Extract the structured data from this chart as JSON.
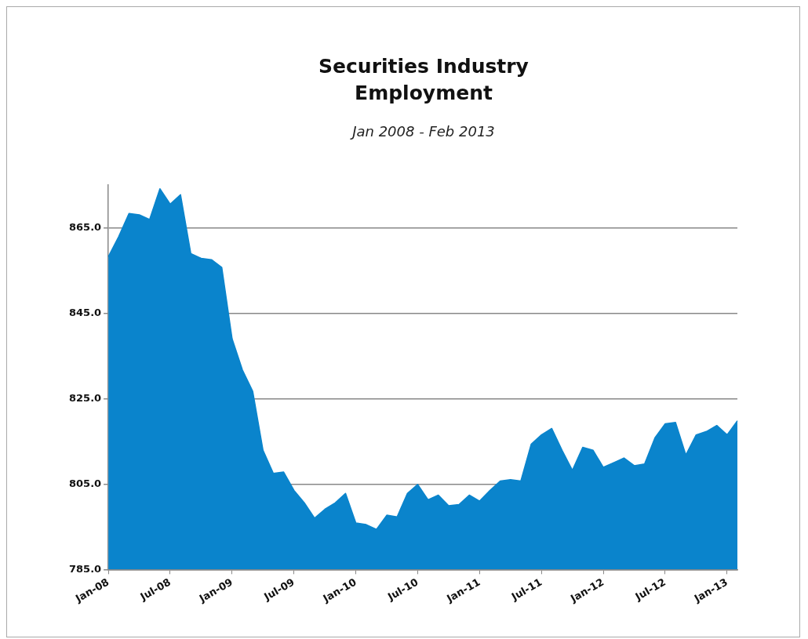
{
  "chart_data": {
    "type": "area",
    "title": "Securities Industry Employment",
    "subtitle": "Jan 2008 -  Feb 2013",
    "categories": [
      "Jan-08",
      null,
      null,
      null,
      null,
      null,
      "Jul-08",
      null,
      null,
      null,
      null,
      null,
      "Jan-09",
      null,
      null,
      null,
      null,
      null,
      "Jul-09",
      null,
      null,
      null,
      null,
      null,
      "Jan-10",
      null,
      null,
      null,
      null,
      null,
      "Jul-10",
      null,
      null,
      null,
      null,
      null,
      "Jan-11",
      null,
      null,
      null,
      null,
      null,
      "Jul-11",
      null,
      null,
      null,
      null,
      null,
      "Jan-12",
      null,
      null,
      null,
      null,
      null,
      "Jul-12",
      null,
      null,
      null,
      null,
      null,
      "Jan-13",
      null
    ],
    "values": [
      858.2,
      862.9,
      868.3,
      868.0,
      866.9,
      874.1,
      870.5,
      872.7,
      858.9,
      857.8,
      857.5,
      855.7,
      839.0,
      831.7,
      826.7,
      812.9,
      807.5,
      807.8,
      803.5,
      800.6,
      797.0,
      799.1,
      800.6,
      802.8,
      795.9,
      795.5,
      794.4,
      797.7,
      797.3,
      802.8,
      804.9,
      801.3,
      802.4,
      799.9,
      800.2,
      802.4,
      801.0,
      803.5,
      805.7,
      806.0,
      805.7,
      814.3,
      816.5,
      818.0,
      812.9,
      808.2,
      813.6,
      812.9,
      808.9,
      810.0,
      811.1,
      809.3,
      809.7,
      815.8,
      819.1,
      819.4,
      811.8,
      816.5,
      817.3,
      818.7,
      816.5,
      819.8
    ],
    "color": "#0a84cc",
    "ylim": [
      785,
      875
    ],
    "yticks": [
      {
        "value": 785,
        "label": "785.0"
      },
      {
        "value": 805,
        "label": "805.0"
      },
      {
        "value": 825,
        "label": "825.0"
      },
      {
        "value": 845,
        "label": "845.0"
      },
      {
        "value": 865,
        "label": "865.0"
      }
    ],
    "grid": "y"
  }
}
